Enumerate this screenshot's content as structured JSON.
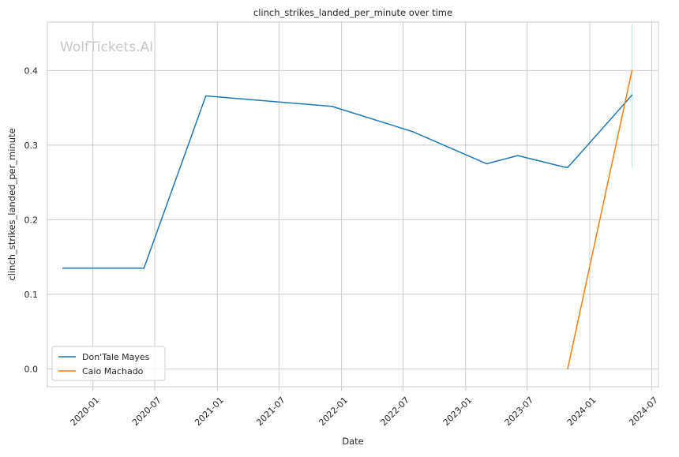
{
  "chart_data": {
    "type": "line",
    "title": "clinch_strikes_landed_per_minute over time",
    "xlabel": "Date",
    "ylabel": "clinch_strikes_landed_per_minute",
    "watermark": "WolfTickets.AI",
    "x_ticks": [
      "2020-01",
      "2020-07",
      "2021-01",
      "2021-07",
      "2022-01",
      "2022-07",
      "2023-01",
      "2023-07",
      "2024-01",
      "2024-07"
    ],
    "y_ticks": [
      "0.0",
      "0.1",
      "0.2",
      "0.3",
      "0.4"
    ],
    "xlim": [
      "2019-08-20",
      "2024-07-21"
    ],
    "ylim": [
      -0.024,
      0.465
    ],
    "grid": true,
    "legend_position": "lower-left",
    "series": [
      {
        "name": "Don'Tale Mayes",
        "color": "#1f77b4",
        "x": [
          "2019-10-05",
          "2020-05-30",
          "2020-11-28",
          "2021-12-04",
          "2022-07-30",
          "2023-03-04",
          "2023-06-03",
          "2023-10-14",
          "2023-10-28",
          "2024-05-04"
        ],
        "y": [
          0.135,
          0.135,
          0.366,
          0.352,
          0.318,
          0.275,
          0.286,
          0.271,
          0.27,
          0.367
        ]
      },
      {
        "name": "Caio Machado",
        "color": "#ff7f0e",
        "x": [
          "2023-10-28",
          "2024-05-04"
        ],
        "y": [
          0.0,
          0.4
        ]
      }
    ],
    "band": {
      "x": "2024-05-04",
      "y_range": [
        0.27,
        0.462
      ],
      "color": "#8fd1c4"
    }
  }
}
